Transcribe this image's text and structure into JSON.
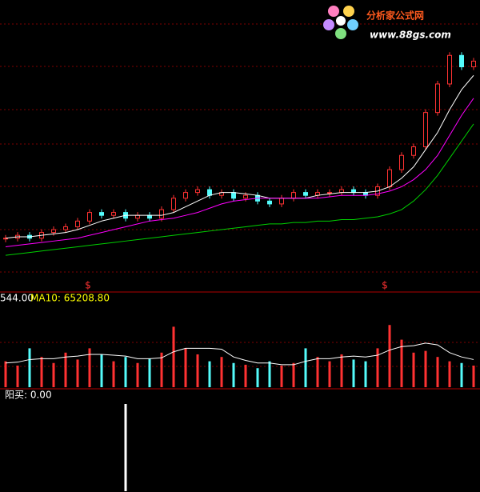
{
  "logo": {
    "title": "分析家公式网",
    "url": "www.88gs.com"
  },
  "markers": [
    "$",
    "$"
  ],
  "chart_data": [
    {
      "type": "candlestick",
      "ylim": [
        0,
        100
      ],
      "legend": [
        "544.00",
        "MA10: 65208.80"
      ],
      "up_color": "#ff3232",
      "down_color": "#54fcfc",
      "close": [
        18,
        19,
        18,
        20,
        21,
        22,
        24,
        27,
        26,
        27,
        25,
        26,
        25,
        28,
        32,
        34,
        35,
        33,
        34,
        32,
        33,
        31,
        30,
        32,
        34,
        33,
        34,
        34,
        35,
        34,
        33,
        36,
        42,
        47,
        50,
        62,
        72,
        82,
        78,
        80
      ],
      "ma_lines": [
        {
          "color": "#ffffff",
          "values": [
            18,
            18.5,
            18.5,
            19,
            19.5,
            20,
            21,
            22.5,
            24,
            25,
            26,
            26,
            26,
            26,
            27,
            29,
            31,
            33,
            34,
            34,
            33.5,
            33,
            32,
            32,
            32,
            32,
            33,
            33.5,
            34,
            34,
            34,
            34.5,
            36,
            39,
            43,
            49,
            55,
            63,
            70,
            75
          ]
        },
        {
          "color": "#ff00ff",
          "values": [
            15,
            15.5,
            16,
            16.5,
            17,
            17.5,
            18,
            19,
            20,
            21,
            22,
            23,
            24,
            24.5,
            25,
            26,
            27,
            28.5,
            30,
            31,
            31.5,
            32,
            32,
            32,
            32,
            32,
            32,
            32.5,
            33,
            33,
            33,
            33.5,
            34.5,
            36,
            38.5,
            42,
            47,
            54,
            61,
            67
          ]
        },
        {
          "color": "#00d000",
          "values": [
            12,
            12.5,
            13,
            13.5,
            14,
            14.5,
            15,
            15.5,
            16,
            16.5,
            17,
            17.5,
            18,
            18.5,
            19,
            19.5,
            20,
            20.5,
            21,
            21.5,
            22,
            22.5,
            23,
            23,
            23.5,
            23.5,
            24,
            24,
            24.5,
            24.5,
            25,
            25.5,
            26.5,
            28,
            31,
            35,
            40,
            46,
            52,
            58
          ]
        }
      ]
    },
    {
      "type": "volume",
      "ylim": [
        0,
        100
      ],
      "values": [
        30,
        25,
        45,
        35,
        28,
        40,
        32,
        45,
        38,
        30,
        35,
        28,
        33,
        40,
        70,
        45,
        38,
        30,
        35,
        28,
        26,
        22,
        30,
        25,
        28,
        45,
        35,
        30,
        38,
        32,
        30,
        45,
        72,
        55,
        40,
        42,
        35,
        30,
        28,
        25
      ],
      "ma": {
        "color": "#ffffff",
        "values": [
          28,
          29,
          32,
          33,
          33,
          35,
          36,
          38,
          38,
          37,
          36,
          33,
          33,
          34,
          41,
          45,
          45,
          45,
          44,
          35,
          31,
          28,
          28,
          26,
          26,
          30,
          33,
          33,
          35,
          36,
          35,
          37,
          43,
          47,
          48,
          51,
          49,
          40,
          35,
          32
        ]
      }
    },
    {
      "type": "signal",
      "ylim": [
        0,
        100
      ],
      "label": "阳买: 0.00",
      "color": "#ffffff",
      "values": [
        0,
        0,
        0,
        0,
        0,
        0,
        0,
        0,
        0,
        0,
        100,
        0,
        0,
        0,
        0,
        0,
        0,
        0,
        0,
        0,
        0,
        0,
        0,
        0,
        0,
        0,
        0,
        0,
        0,
        0,
        0,
        0,
        0,
        0,
        0,
        0,
        0,
        0,
        0,
        0
      ]
    }
  ]
}
